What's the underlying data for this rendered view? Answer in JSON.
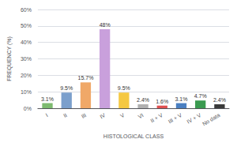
{
  "chart_data": {
    "type": "bar",
    "categories": [
      "I",
      "II",
      "III",
      "IV",
      "V",
      "VI",
      "II + V",
      "III + V",
      "IV + V",
      "No data"
    ],
    "values": [
      3.1,
      9.5,
      15.7,
      48.0,
      9.5,
      2.4,
      1.6,
      3.1,
      4.7,
      2.4
    ],
    "value_labels": [
      "3.1%",
      "9.5%",
      "15.7%",
      "48%",
      "9.5%",
      "2.4%",
      "1.6%",
      "3.1%",
      "4.7%",
      "2.4%"
    ],
    "colors": [
      "#7dba6f",
      "#7b9fcc",
      "#f0a868",
      "#c9a0dc",
      "#f5c842",
      "#b0b0b0",
      "#e05050",
      "#4a7fc1",
      "#3a9a50",
      "#3a3a3a"
    ],
    "xlabel": "HISTOLOGICAL CLASS",
    "ylabel": "FREQUENCY (%)",
    "ylim": [
      0,
      60
    ],
    "yticks": [
      {
        "value": 0,
        "label": "0%"
      },
      {
        "value": 10,
        "label": "10%"
      },
      {
        "value": 20,
        "label": "20%"
      },
      {
        "value": 30,
        "label": "30%"
      },
      {
        "value": 40,
        "label": "40%"
      },
      {
        "value": 50,
        "label": "50%"
      },
      {
        "value": 60,
        "label": "60%"
      }
    ],
    "grid": true,
    "data_labels": true
  }
}
